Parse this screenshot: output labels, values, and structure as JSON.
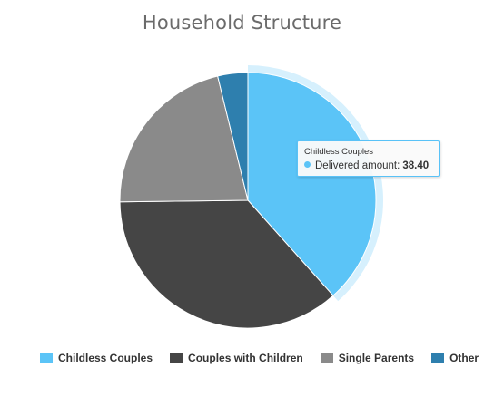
{
  "chart_data": {
    "type": "pie",
    "title": "Household Structure",
    "categories": [
      "Childless Couples",
      "Couples with Children",
      "Single Parents",
      "Other"
    ],
    "series": [
      {
        "name": "Delivered amount",
        "values": [
          38.4,
          36.4,
          21.4,
          3.8
        ]
      }
    ],
    "colors": [
      "#5bc4f7",
      "#454545",
      "#8a8a8a",
      "#2e7fae"
    ],
    "hover_halo_color": "#5bc4f7",
    "highlighted_index": 0,
    "legend": "bottom"
  },
  "tooltip": {
    "category": "Childless Couples",
    "series_name": "Delivered amount",
    "label": "Delivered amount:",
    "value": "38.40",
    "dot_color": "#5bc4f7"
  }
}
